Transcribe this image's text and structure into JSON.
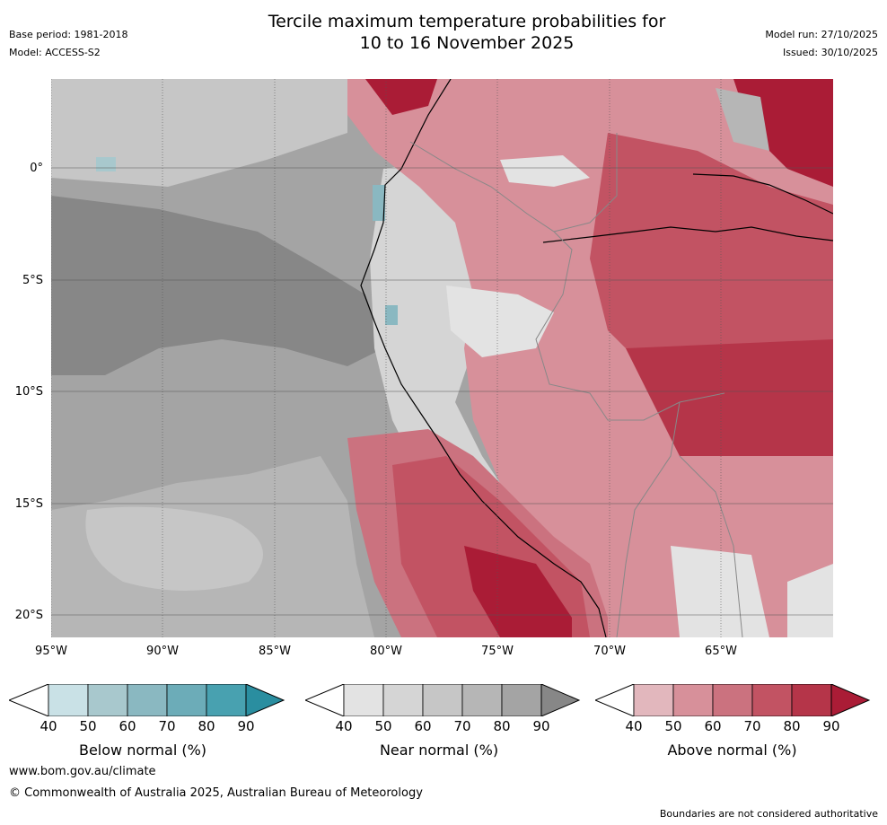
{
  "header": {
    "title_line1": "Tercile maximum temperature probabilities for",
    "title_line2": "10 to 16 November 2025",
    "base_period": "Base period: 1981-2018",
    "model": "Model: ACCESS-S2",
    "model_run": "Model run: 27/10/2025",
    "issued": "Issued: 30/10/2025"
  },
  "map": {
    "lat_ticks": [
      "0°",
      "5°S",
      "10°S",
      "15°S",
      "20°S"
    ],
    "lon_ticks": [
      "95°W",
      "90°W",
      "85°W",
      "80°W",
      "75°W",
      "70°W",
      "65°W"
    ]
  },
  "colorbars": [
    {
      "label": "Below normal (%)",
      "ticks": [
        "40",
        "50",
        "60",
        "70",
        "80",
        "90"
      ],
      "colors": [
        "#c9e1e6",
        "#a8c8cd",
        "#8ab8c1",
        "#6cacb8",
        "#48a1b0",
        "#2a8ea0"
      ]
    },
    {
      "label": "Near normal (%)",
      "ticks": [
        "40",
        "50",
        "60",
        "70",
        "80",
        "90"
      ],
      "colors": [
        "#e3e3e3",
        "#d5d5d5",
        "#c6c6c6",
        "#b6b6b6",
        "#a4a4a4",
        "#878787"
      ]
    },
    {
      "label": "Above normal (%)",
      "ticks": [
        "40",
        "50",
        "60",
        "70",
        "80",
        "90"
      ],
      "colors": [
        "#e2b7bd",
        "#d7909a",
        "#cb727f",
        "#c25363",
        "#b53549",
        "#aa1c36"
      ]
    }
  ],
  "footer": {
    "url": "www.bom.gov.au/climate",
    "copyright": "© Commonwealth of Australia 2025, Australian Bureau of Meteorology",
    "disclaimer": "Boundaries are not considered authoritative"
  }
}
